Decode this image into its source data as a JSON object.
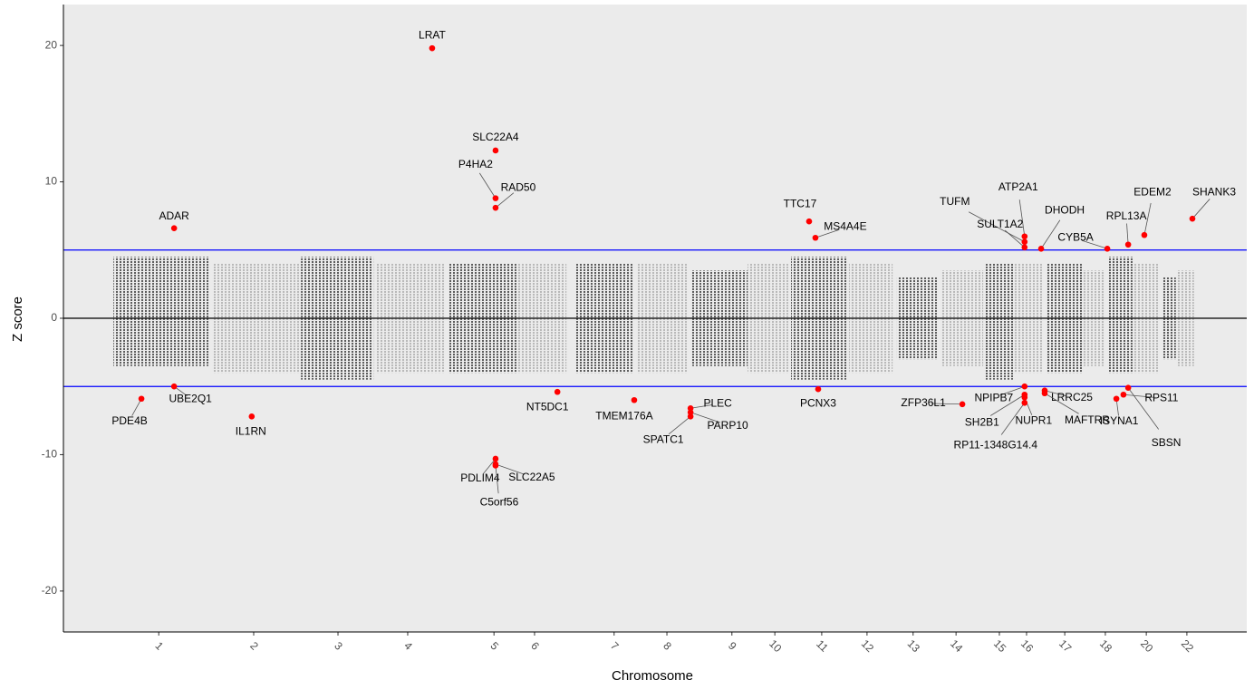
{
  "chart_data": {
    "type": "manhattan",
    "xlabel": "Chromosome",
    "ylabel": "Z score",
    "xlim": [
      0,
      3004
    ],
    "ylim": [
      -23,
      23
    ],
    "yticks": [
      -20,
      -10,
      0,
      10,
      20
    ],
    "xticks": [
      {
        "value": 242,
        "label": "1"
      },
      {
        "value": 483,
        "label": "2"
      },
      {
        "value": 697,
        "label": "3"
      },
      {
        "value": 874,
        "label": "4"
      },
      {
        "value": 1093,
        "label": "5"
      },
      {
        "value": 1196,
        "label": "6"
      },
      {
        "value": 1398,
        "label": "7"
      },
      {
        "value": 1532,
        "label": "8"
      },
      {
        "value": 1697,
        "label": "9"
      },
      {
        "value": 1806,
        "label": "10"
      },
      {
        "value": 1925,
        "label": "11"
      },
      {
        "value": 2040,
        "label": "12"
      },
      {
        "value": 2157,
        "label": "13"
      },
      {
        "value": 2266,
        "label": "14"
      },
      {
        "value": 2376,
        "label": "15"
      },
      {
        "value": 2445,
        "label": "16"
      },
      {
        "value": 2542,
        "label": "17"
      },
      {
        "value": 2645,
        "label": "18"
      },
      {
        "value": 2749,
        "label": "20"
      },
      {
        "value": 2852,
        "label": "22"
      }
    ],
    "hlines": [
      {
        "value": 5,
        "color": "#0000ff"
      },
      {
        "value": -5,
        "color": "#0000ff"
      },
      {
        "value": 0,
        "color": "#000000"
      }
    ],
    "clusters": [
      {
        "start": 127,
        "end": 368,
        "low": -3.5,
        "high": 4.5,
        "color": "#4d4d4d"
      },
      {
        "start": 380,
        "end": 598,
        "low": -4,
        "high": 4,
        "color": "#b3b3b3"
      },
      {
        "start": 603,
        "end": 787,
        "low": -4.5,
        "high": 4.5,
        "color": "#4d4d4d"
      },
      {
        "start": 791,
        "end": 966,
        "low": -4,
        "high": 4,
        "color": "#b3b3b3"
      },
      {
        "start": 978,
        "end": 1150,
        "low": -4,
        "high": 4,
        "color": "#4d4d4d"
      },
      {
        "start": 1150,
        "end": 1277,
        "low": -4,
        "high": 4,
        "color": "#b3b3b3"
      },
      {
        "start": 1300,
        "end": 1449,
        "low": -4,
        "high": 4,
        "color": "#4d4d4d"
      },
      {
        "start": 1454,
        "end": 1587,
        "low": -4,
        "high": 4,
        "color": "#b3b3b3"
      },
      {
        "start": 1592,
        "end": 1737,
        "low": -3.5,
        "high": 3.5,
        "color": "#4d4d4d"
      },
      {
        "start": 1737,
        "end": 1840,
        "low": -4,
        "high": 4,
        "color": "#b3b3b3"
      },
      {
        "start": 1847,
        "end": 1990,
        "low": -4.5,
        "high": 4.5,
        "color": "#4d4d4d"
      },
      {
        "start": 1994,
        "end": 2105,
        "low": -4,
        "high": 4,
        "color": "#b3b3b3"
      },
      {
        "start": 2116,
        "end": 2220,
        "low": -3,
        "high": 3,
        "color": "#4d4d4d"
      },
      {
        "start": 2231,
        "end": 2335,
        "low": -3.5,
        "high": 3.5,
        "color": "#b3b3b3"
      },
      {
        "start": 2339,
        "end": 2415,
        "low": -4.5,
        "high": 4,
        "color": "#4d4d4d"
      },
      {
        "start": 2415,
        "end": 2484,
        "low": -4,
        "high": 4,
        "color": "#b3b3b3"
      },
      {
        "start": 2496,
        "end": 2588,
        "low": -4,
        "high": 4,
        "color": "#4d4d4d"
      },
      {
        "start": 2588,
        "end": 2645,
        "low": -3.5,
        "high": 3.5,
        "color": "#b3b3b3"
      },
      {
        "start": 2650,
        "end": 2714,
        "low": -4,
        "high": 4.5,
        "color": "#4d4d4d"
      },
      {
        "start": 2714,
        "end": 2783,
        "low": -4,
        "high": 4,
        "color": "#b3b3b3"
      },
      {
        "start": 2790,
        "end": 2824,
        "low": -3,
        "high": 3,
        "color": "#4d4d4d"
      },
      {
        "start": 2829,
        "end": 2870,
        "low": -3.5,
        "high": 3.5,
        "color": "#b3b3b3"
      }
    ],
    "series": [
      {
        "color": "#ff0000",
        "labels": [
          "LRAT",
          "SLC22A4",
          "P4HA2",
          "RAD50",
          "ADAR",
          "TTC17",
          "MS4A4E",
          "ATP2A1",
          "TUFM",
          "SULT1A2",
          "DHODH",
          "CYB5A",
          "RPL13A",
          "EDEM2",
          "SHANK3",
          "PDE4B",
          "UBE2Q1",
          "IL1RN",
          "NT5DC1",
          "PDLIM4",
          "SLC22A5",
          "C5orf56",
          "TMEM176A",
          "PLEC",
          "PARP10",
          "SPATC1",
          "PCNX3",
          "ZFP36L1",
          "NPIPB7",
          "SH2B1",
          "NUPR1",
          "RP11-1348G14.4",
          "LRRC25",
          "MAFTRR",
          "ISYNA1",
          "RPS11",
          "SBSN"
        ],
        "x": [
          936,
          1097,
          1097,
          1097,
          281,
          1893,
          1909,
          2440,
          2440,
          2440,
          2482,
          2650,
          2703,
          2744,
          2866,
          198,
          281,
          478,
          1254,
          1097,
          1097,
          1097,
          1449,
          1592,
          1592,
          1592,
          1916,
          2282,
          2440,
          2440,
          2440,
          2440,
          2491,
          2491,
          2673,
          2691,
          2703
        ],
        "values": [
          19.8,
          12.3,
          8.8,
          8.1,
          6.6,
          7.1,
          5.9,
          6.0,
          5.6,
          5.2,
          5.1,
          5.1,
          5.4,
          6.1,
          7.3,
          -5.9,
          -5.0,
          -7.2,
          -5.4,
          -10.3,
          -10.7,
          -10.8,
          -6.0,
          -6.6,
          -6.9,
          -7.2,
          -5.2,
          -6.3,
          -5.0,
          -5.6,
          -5.8,
          -6.2,
          -5.3,
          -5.5,
          -5.9,
          -5.6,
          -5.1
        ]
      }
    ]
  }
}
